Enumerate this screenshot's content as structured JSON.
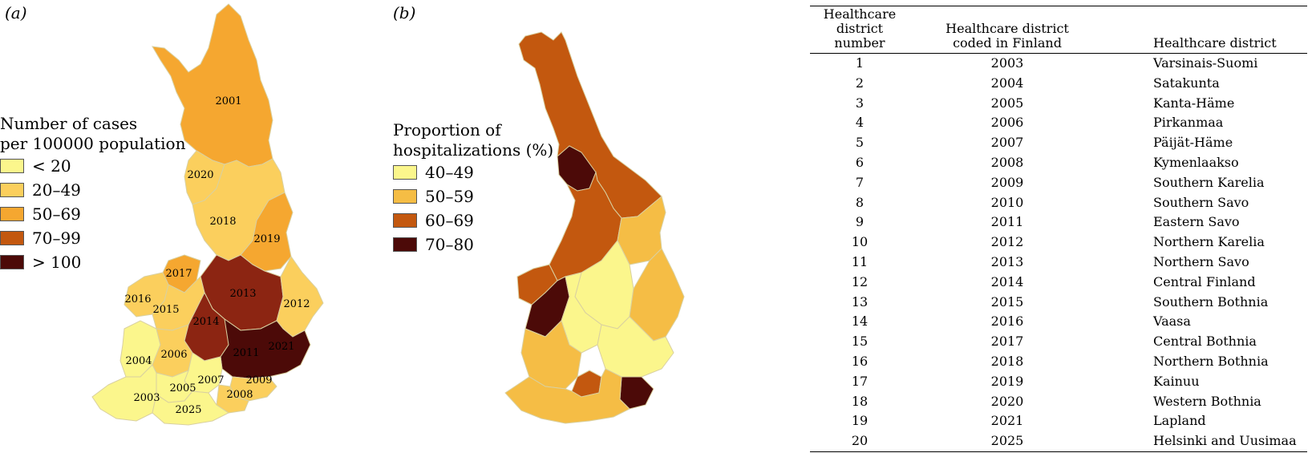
{
  "panel_a": {
    "tag": "(a)",
    "legend_title": [
      "Number of cases",
      "per 100000 population"
    ],
    "legend": [
      {
        "label": "< 20",
        "color": "#fbf68c"
      },
      {
        "label": "20–49",
        "color": "#fbcf5d"
      },
      {
        "label": "50–69",
        "color": "#f5a730"
      },
      {
        "label": "70–99",
        "color": "#c3580f"
      },
      {
        "label": "> 100",
        "color": "#4c0a08"
      }
    ],
    "region_labels": [
      "2001",
      "2020",
      "2018",
      "2019",
      "2017",
      "2013",
      "2016",
      "2015",
      "2012",
      "2014",
      "2004",
      "2006",
      "2011",
      "2021",
      "2007",
      "2009",
      "2005",
      "2003",
      "2008",
      "2025"
    ]
  },
  "panel_b": {
    "tag": "(b)",
    "legend_title": [
      "Proportion of",
      "hospitalizations (%)"
    ],
    "legend": [
      {
        "label": "40–49",
        "color": "#fbf68c"
      },
      {
        "label": "50–59",
        "color": "#f5bd45"
      },
      {
        "label": "60–69",
        "color": "#c3580f"
      },
      {
        "label": "70–80",
        "color": "#4c0a08"
      }
    ]
  },
  "table": {
    "headers": [
      [
        "Healthcare",
        "district number"
      ],
      [
        "Healthcare district",
        "coded in Finland"
      ],
      [
        "Healthcare district"
      ]
    ],
    "rows": [
      [
        "1",
        "2003",
        "Varsinais-Suomi"
      ],
      [
        "2",
        "2004",
        "Satakunta"
      ],
      [
        "3",
        "2005",
        "Kanta-Häme"
      ],
      [
        "4",
        "2006",
        "Pirkanmaa"
      ],
      [
        "5",
        "2007",
        "Päijät-Häme"
      ],
      [
        "6",
        "2008",
        "Kymenlaakso"
      ],
      [
        "7",
        "2009",
        "Southern Karelia"
      ],
      [
        "8",
        "2010",
        "Southern Savo"
      ],
      [
        "9",
        "2011",
        "Eastern Savo"
      ],
      [
        "10",
        "2012",
        "Northern Karelia"
      ],
      [
        "11",
        "2013",
        "Northern Savo"
      ],
      [
        "12",
        "2014",
        "Central Finland"
      ],
      [
        "13",
        "2015",
        "Southern Bothnia"
      ],
      [
        "14",
        "2016",
        "Vaasa"
      ],
      [
        "15",
        "2017",
        "Central Bothnia"
      ],
      [
        "16",
        "2018",
        "Northern Bothnia"
      ],
      [
        "17",
        "2019",
        "Kainuu"
      ],
      [
        "18",
        "2020",
        "Western Bothnia"
      ],
      [
        "19",
        "2021",
        "Lapland"
      ],
      [
        "20",
        "2025",
        "Helsinki and Uusimaa"
      ]
    ]
  }
}
